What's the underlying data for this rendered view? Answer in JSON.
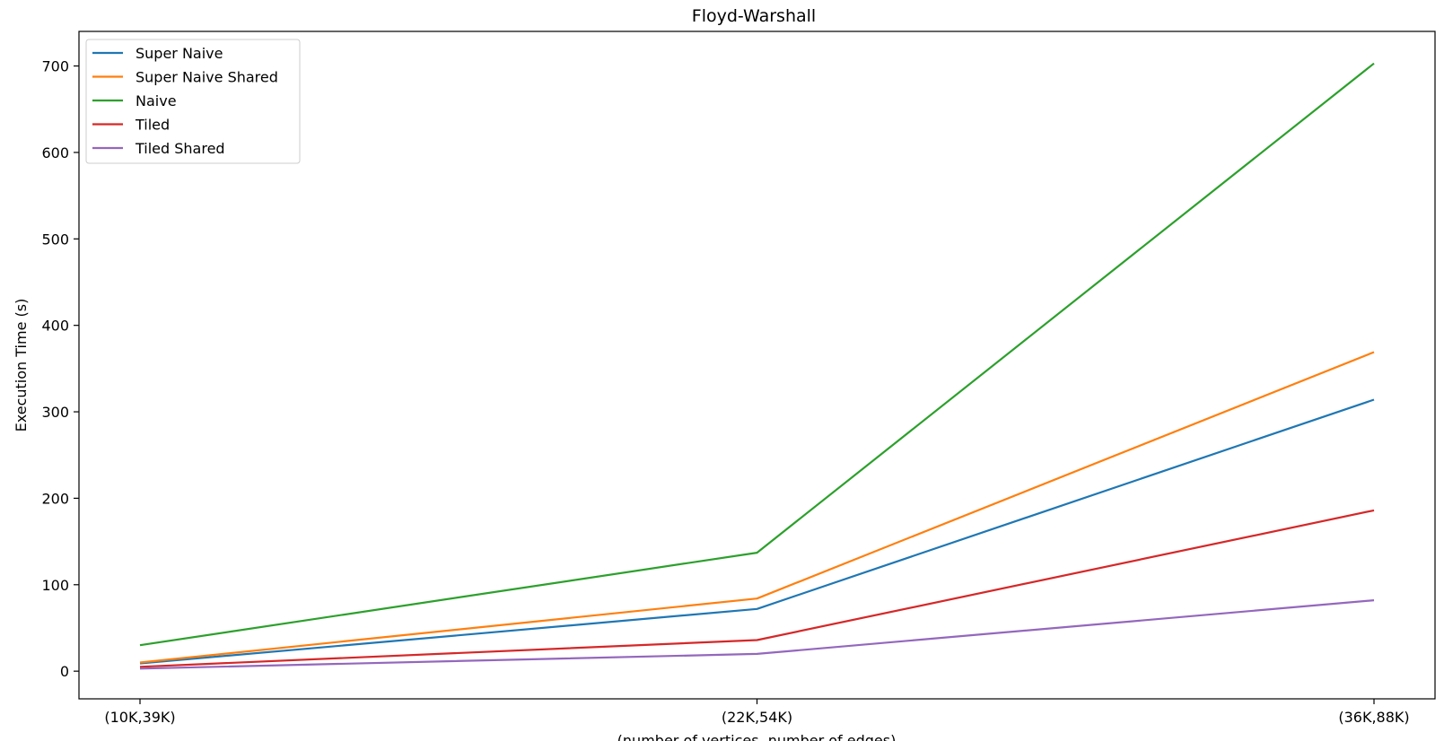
{
  "chart_data": {
    "type": "line",
    "title": "Floyd-Warshall",
    "xlabel": "(number of vertices, number of edges)",
    "ylabel": "Execution Time (s)",
    "categories": [
      "(10K,39K)",
      "(22K,54K)",
      "(36K,88K)"
    ],
    "yticks": [
      0,
      100,
      200,
      300,
      400,
      500,
      600,
      700
    ],
    "ylim": [
      -32,
      740
    ],
    "grid": false,
    "legend_position": "top-left",
    "series": [
      {
        "name": "Super Naive",
        "color": "#1f77b4",
        "values": [
          9,
          72,
          314
        ]
      },
      {
        "name": "Super Naive Shared",
        "color": "#ff7f0e",
        "values": [
          10,
          84,
          369
        ]
      },
      {
        "name": "Naive",
        "color": "#2ca02c",
        "values": [
          30,
          137,
          703
        ]
      },
      {
        "name": "Tiled",
        "color": "#d62728",
        "values": [
          5,
          36,
          186
        ]
      },
      {
        "name": "Tiled Shared",
        "color": "#9467bd",
        "values": [
          3,
          20,
          82
        ]
      }
    ]
  }
}
